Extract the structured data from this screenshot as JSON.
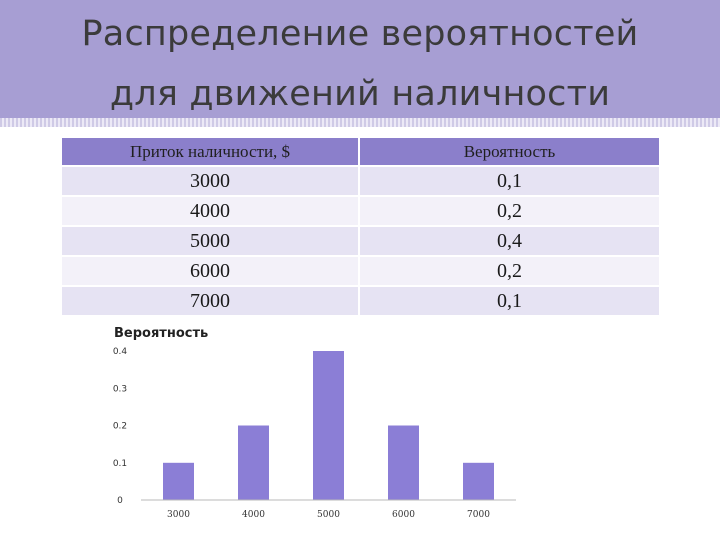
{
  "title": {
    "line1": "Распределение вероятностей",
    "line2": "для движений наличности"
  },
  "table": {
    "headers": [
      "Приток наличности, $",
      "Вероятность"
    ],
    "rows": [
      [
        "3000",
        "0,1"
      ],
      [
        "4000",
        "0,2"
      ],
      [
        "5000",
        "0,4"
      ],
      [
        "6000",
        "0,2"
      ],
      [
        "7000",
        "0,1"
      ]
    ]
  },
  "colors": {
    "header_band": "#a79ed3",
    "table_header": "#8b7fcb",
    "bar": "#8b7ed6"
  },
  "chart_data": {
    "type": "bar",
    "categories": [
      "3000",
      "4000",
      "5000",
      "6000",
      "7000"
    ],
    "values": [
      0.1,
      0.2,
      0.4,
      0.2,
      0.1
    ],
    "ylabel": "Вероятность",
    "xlabel": "",
    "yticks": [
      "0",
      "0.1",
      "0.2",
      "0.3",
      "0.4"
    ],
    "ylim": [
      0,
      0.4
    ],
    "grid": false,
    "legend": "none"
  }
}
